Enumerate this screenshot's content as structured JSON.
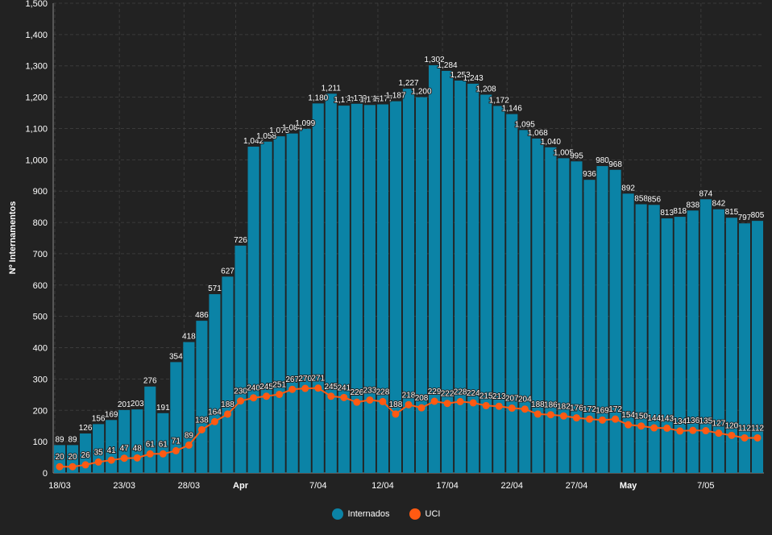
{
  "chart_data": {
    "type": "bar",
    "ylabel": "Nº Internamentos",
    "ylim": [
      0,
      1500
    ],
    "ytick_step": 100,
    "grid": true,
    "categories": [
      "2020-03-18",
      "2020-03-19",
      "2020-03-20",
      "2020-03-21",
      "2020-03-22",
      "2020-03-23",
      "2020-03-24",
      "2020-03-25",
      "2020-03-26",
      "2020-03-27",
      "2020-03-28",
      "2020-03-29",
      "2020-03-30",
      "2020-03-31",
      "2020-04-01",
      "2020-04-02",
      "2020-04-03",
      "2020-04-04",
      "2020-04-05",
      "2020-04-06",
      "2020-04-07",
      "2020-04-08",
      "2020-04-09",
      "2020-04-10",
      "2020-04-11",
      "2020-04-12",
      "2020-04-13",
      "2020-04-14",
      "2020-04-15",
      "2020-04-16",
      "2020-04-17",
      "2020-04-18",
      "2020-04-19",
      "2020-04-20",
      "2020-04-21",
      "2020-04-22",
      "2020-04-23",
      "2020-04-24",
      "2020-04-25",
      "2020-04-26",
      "2020-04-27",
      "2020-04-28",
      "2020-04-29",
      "2020-04-30",
      "2020-05-01",
      "2020-05-02",
      "2020-05-03",
      "2020-05-04",
      "2020-05-05",
      "2020-05-06",
      "2020-05-07",
      "2020-05-08",
      "2020-05-09",
      "2020-05-10",
      "2020-05-11"
    ],
    "x_tick_labels": [
      {
        "index": 0,
        "label": "18/03",
        "bold": false
      },
      {
        "index": 5,
        "label": "23/03",
        "bold": false
      },
      {
        "index": 10,
        "label": "28/03",
        "bold": false
      },
      {
        "index": 14,
        "label": "Apr",
        "bold": true
      },
      {
        "index": 20,
        "label": "7/04",
        "bold": false
      },
      {
        "index": 25,
        "label": "12/04",
        "bold": false
      },
      {
        "index": 30,
        "label": "17/04",
        "bold": false
      },
      {
        "index": 35,
        "label": "22/04",
        "bold": false
      },
      {
        "index": 40,
        "label": "27/04",
        "bold": false
      },
      {
        "index": 44,
        "label": "May",
        "bold": true
      },
      {
        "index": 50,
        "label": "7/05",
        "bold": false
      }
    ],
    "series": [
      {
        "name": "Internados",
        "type": "bar",
        "color": "#0b83a6",
        "values": [
          89,
          89,
          126,
          156,
          169,
          201,
          203,
          276,
          191,
          354,
          418,
          486,
          571,
          627,
          726,
          1042,
          1058,
          1075,
          1084,
          1099,
          1180,
          1211,
          1173,
          1179,
          1175,
          1177,
          1187,
          1227,
          1200,
          1302,
          1284,
          1253,
          1243,
          1208,
          1172,
          1146,
          1095,
          1068,
          1040,
          1005,
          995,
          936,
          980,
          968,
          892,
          858,
          856,
          813,
          818,
          838,
          874,
          842,
          815,
          797,
          805
        ]
      },
      {
        "name": "UCI",
        "type": "line",
        "color": "#ff5a12",
        "values": [
          20,
          20,
          26,
          35,
          41,
          47,
          48,
          61,
          61,
          71,
          89,
          138,
          164,
          188,
          230,
          240,
          245,
          251,
          267,
          270,
          271,
          245,
          241,
          226,
          233,
          228,
          188,
          218,
          208,
          229,
          222,
          228,
          224,
          215,
          213,
          207,
          204,
          188,
          186,
          182,
          176,
          172,
          169,
          172,
          154,
          150,
          144,
          143,
          134,
          136,
          135,
          127,
          120,
          112,
          112
        ]
      }
    ]
  },
  "colors": {
    "background": "#222222",
    "grid": "#3b3b3b",
    "axis": "#8a8a8a",
    "text": "#ffffff"
  }
}
